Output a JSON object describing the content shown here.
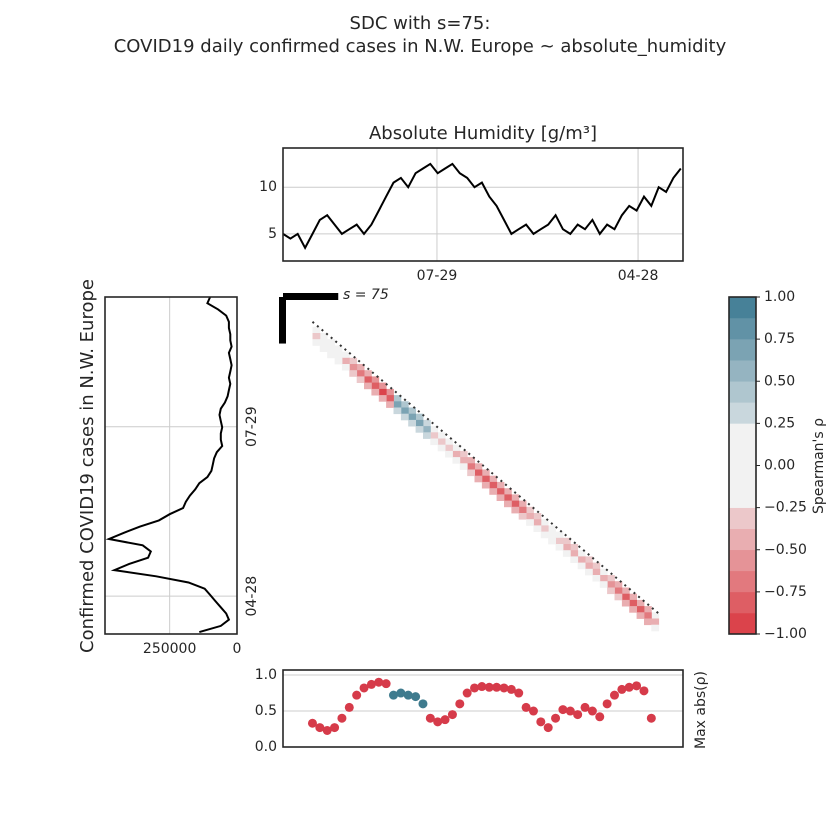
{
  "title": [
    "SDC with s=75:",
    "COVID19 daily confirmed cases in N.W. Europe ~ absolute_humidity"
  ],
  "chart_data": [
    {
      "type": "line",
      "title": "Absolute Humidity [g/m³]",
      "color": "#000000",
      "grid": true,
      "x": [
        0,
        10,
        20,
        30,
        40,
        50,
        60,
        70,
        80,
        90,
        100,
        110,
        120,
        130,
        140,
        150,
        160,
        170,
        180,
        190,
        200,
        210,
        220,
        230,
        240,
        250,
        260,
        270,
        280,
        290,
        300,
        310,
        320,
        330,
        340,
        350,
        360,
        370,
        380,
        390,
        400,
        410,
        420,
        430,
        440,
        450,
        460,
        470,
        480,
        490,
        500,
        510,
        520,
        530,
        540
      ],
      "values": [
        5,
        4.5,
        5,
        3.5,
        5,
        6.5,
        7,
        6,
        5,
        5.5,
        6,
        5,
        6,
        7.5,
        9,
        10.5,
        11,
        10,
        11.5,
        12,
        12.5,
        11.5,
        12,
        12.5,
        11.5,
        11,
        10,
        10.5,
        9,
        8,
        6.5,
        5,
        5.5,
        6,
        5,
        5.5,
        6,
        7,
        5.5,
        5,
        6,
        5.5,
        6.5,
        5,
        6,
        5.5,
        7,
        8,
        7.5,
        9,
        8,
        10,
        9.5,
        11,
        12
      ],
      "xlim": [
        0,
        543
      ],
      "ylim": [
        2.1,
        14.2
      ],
      "xticks": [
        {
          "value": 209,
          "label": "07-29"
        },
        {
          "value": 482,
          "label": "04-28"
        }
      ],
      "yticks": [
        5,
        10
      ]
    },
    {
      "type": "line",
      "orientation": "vertical",
      "value_axis_reversed": true,
      "color": "#000000",
      "grid": true,
      "ylabel": "Confirmed COVID19 cases in N.W. Europe",
      "x": [
        0,
        10,
        20,
        30,
        40,
        50,
        60,
        70,
        80,
        90,
        100,
        110,
        120,
        130,
        140,
        150,
        160,
        170,
        180,
        190,
        200,
        210,
        220,
        230,
        240,
        250,
        260,
        270,
        280,
        290,
        300,
        310,
        320,
        330,
        340,
        350,
        360,
        370,
        380,
        390,
        400,
        410,
        420,
        430,
        440,
        450,
        460,
        470,
        480,
        490,
        500,
        510,
        520,
        530,
        540
      ],
      "values": [
        100000,
        110000,
        70000,
        40000,
        30000,
        30000,
        25000,
        25000,
        20000,
        30000,
        25000,
        20000,
        25000,
        30000,
        25000,
        30000,
        35000,
        45000,
        60000,
        65000,
        60000,
        55000,
        60000,
        60000,
        55000,
        75000,
        85000,
        90000,
        95000,
        110000,
        140000,
        155000,
        175000,
        190000,
        200000,
        250000,
        290000,
        360000,
        420000,
        475000,
        350000,
        320000,
        330000,
        400000,
        455000,
        300000,
        180000,
        120000,
        100000,
        80000,
        60000,
        40000,
        30000,
        60000,
        140000
      ],
      "xlim": [
        0,
        543
      ],
      "ylim": [
        0,
        490000
      ],
      "xticks": [
        {
          "value": 209,
          "label": "07-29"
        },
        {
          "value": 482,
          "label": "04-28"
        }
      ],
      "yticks": [
        0,
        250000
      ]
    },
    {
      "type": "heatmap",
      "window": 75,
      "window_label": "s = 75",
      "x": [
        40,
        50,
        60,
        70,
        80,
        90,
        100,
        110,
        120,
        130,
        140,
        150,
        160,
        170,
        180,
        190,
        200,
        210,
        220,
        230,
        240,
        250,
        260,
        270,
        280,
        290,
        300,
        310,
        320,
        330,
        340,
        350,
        360,
        370,
        380,
        390,
        400,
        410,
        420,
        430,
        440,
        450,
        460,
        470,
        480,
        490,
        500
      ],
      "lags": [
        8,
        18,
        28
      ],
      "values": [
        [
          -0.18,
          -0.15,
          -0.12,
          -0.15,
          -0.24,
          -0.33,
          -0.42,
          -0.48,
          -0.51,
          -0.53,
          -0.51,
          0.42,
          0.43,
          0.42,
          0.39,
          0.33,
          -0.21,
          -0.18,
          -0.21,
          -0.24,
          -0.3,
          -0.39,
          -0.48,
          -0.49,
          -0.49,
          -0.48,
          -0.48,
          -0.47,
          -0.42,
          -0.3,
          -0.27,
          -0.18,
          -0.12,
          -0.21,
          -0.3,
          -0.27,
          -0.24,
          -0.3,
          -0.27,
          -0.24,
          -0.33,
          -0.42,
          -0.47,
          -0.48,
          -0.49,
          -0.45,
          -0.24
        ],
        [
          -0.3,
          -0.25,
          -0.2,
          -0.25,
          -0.4,
          -0.55,
          -0.7,
          -0.8,
          -0.85,
          -0.88,
          -0.85,
          0.7,
          0.72,
          0.7,
          0.65,
          0.55,
          -0.35,
          -0.3,
          -0.35,
          -0.4,
          -0.5,
          -0.65,
          -0.8,
          -0.82,
          -0.82,
          -0.8,
          -0.8,
          -0.78,
          -0.7,
          -0.5,
          -0.45,
          -0.3,
          -0.2,
          -0.35,
          -0.5,
          -0.45,
          -0.4,
          -0.5,
          -0.45,
          -0.4,
          -0.55,
          -0.7,
          -0.78,
          -0.8,
          -0.82,
          -0.75,
          -0.4
        ],
        [
          -0.15,
          -0.13,
          -0.1,
          -0.13,
          -0.2,
          -0.28,
          -0.35,
          -0.4,
          -0.43,
          -0.44,
          -0.43,
          0.35,
          0.36,
          0.35,
          0.33,
          0.28,
          -0.18,
          -0.15,
          -0.18,
          -0.2,
          -0.25,
          -0.33,
          -0.4,
          -0.41,
          -0.41,
          -0.4,
          -0.4,
          -0.39,
          -0.35,
          -0.25,
          -0.23,
          -0.15,
          -0.1,
          -0.18,
          -0.25,
          -0.23,
          -0.2,
          -0.25,
          -0.23,
          -0.2,
          -0.28,
          -0.35,
          -0.39,
          -0.4,
          -0.41,
          -0.38,
          -0.2
        ]
      ],
      "xlim": [
        0,
        543
      ],
      "ylim": [
        0,
        543
      ],
      "cmap": {
        "negative": "#d9363e",
        "neutral": "#f2f2f2",
        "positive": "#3a7891"
      },
      "neutral_band": 0.25,
      "levels": 16,
      "colorbar": {
        "label": "Spearman's ρ",
        "lim": [
          -1,
          1
        ],
        "ticks": [
          {
            "value": -1,
            "label": "−1.00"
          },
          {
            "value": -0.75,
            "label": "−0.75"
          },
          {
            "value": -0.5,
            "label": "−0.50"
          },
          {
            "value": -0.25,
            "label": "−0.25"
          },
          {
            "value": 0,
            "label": "0.00"
          },
          {
            "value": 0.25,
            "label": "0.25"
          },
          {
            "value": 0.5,
            "label": "0.50"
          },
          {
            "value": 0.75,
            "label": "0.75"
          },
          {
            "value": 1,
            "label": "1.00"
          }
        ]
      }
    },
    {
      "type": "scatter",
      "ylabel": "Max abs(ρ)",
      "grid": true,
      "x": [
        40,
        50,
        60,
        70,
        80,
        90,
        100,
        110,
        120,
        130,
        140,
        150,
        160,
        170,
        180,
        190,
        200,
        210,
        220,
        230,
        240,
        250,
        260,
        270,
        280,
        290,
        300,
        310,
        320,
        330,
        340,
        350,
        360,
        370,
        380,
        390,
        400,
        410,
        420,
        430,
        440,
        450,
        460,
        470,
        480,
        490,
        500
      ],
      "values": [
        0.33,
        0.27,
        0.23,
        0.27,
        0.4,
        0.55,
        0.72,
        0.82,
        0.87,
        0.9,
        0.88,
        0.72,
        0.75,
        0.72,
        0.7,
        0.6,
        0.4,
        0.35,
        0.38,
        0.45,
        0.6,
        0.75,
        0.82,
        0.84,
        0.83,
        0.83,
        0.82,
        0.8,
        0.75,
        0.55,
        0.5,
        0.35,
        0.27,
        0.4,
        0.52,
        0.5,
        0.45,
        0.55,
        0.5,
        0.42,
        0.6,
        0.72,
        0.8,
        0.83,
        0.85,
        0.78,
        0.4
      ],
      "point_colors": [
        "#d63b4a",
        "#d63b4a",
        "#d63b4a",
        "#d63b4a",
        "#d63b4a",
        "#d63b4a",
        "#d63b4a",
        "#d63b4a",
        "#d63b4a",
        "#d63b4a",
        "#d63b4a",
        "#3f7b8e",
        "#3f7b8e",
        "#3f7b8e",
        "#3f7b8e",
        "#3f7b8e",
        "#d63b4a",
        "#d63b4a",
        "#d63b4a",
        "#d63b4a",
        "#d63b4a",
        "#d63b4a",
        "#d63b4a",
        "#d63b4a",
        "#d63b4a",
        "#d63b4a",
        "#d63b4a",
        "#d63b4a",
        "#d63b4a",
        "#d63b4a",
        "#d63b4a",
        "#d63b4a",
        "#d63b4a",
        "#d63b4a",
        "#d63b4a",
        "#d63b4a",
        "#d63b4a",
        "#d63b4a",
        "#d63b4a",
        "#d63b4a",
        "#d63b4a",
        "#d63b4a",
        "#d63b4a",
        "#d63b4a",
        "#d63b4a",
        "#d63b4a",
        "#d63b4a"
      ],
      "xlim": [
        0,
        543
      ],
      "ylim": [
        0,
        1.07
      ],
      "yticks": [
        {
          "value": 0,
          "label": "0.0"
        },
        {
          "value": 0.5,
          "label": "0.5"
        },
        {
          "value": 1,
          "label": "1.0"
        }
      ]
    }
  ]
}
